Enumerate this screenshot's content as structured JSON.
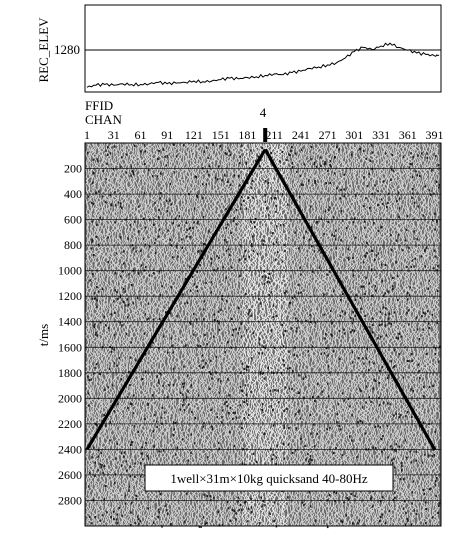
{
  "chart_data": [
    {
      "type": "line",
      "panel": "elevation",
      "ylabel": "REC_ELEV",
      "yticks": [
        1280
      ],
      "x": [
        1,
        11,
        21,
        31,
        41,
        51,
        61,
        71,
        81,
        91,
        101,
        111,
        121,
        131,
        141,
        151,
        161,
        171,
        181,
        191,
        201,
        211,
        221,
        231,
        241,
        251,
        261,
        271,
        281,
        291,
        301,
        311,
        321,
        331,
        341,
        351,
        361,
        371,
        381,
        391,
        396
      ],
      "values": [
        1,
        4,
        5,
        4,
        6,
        5,
        5,
        6,
        8,
        6,
        7,
        8,
        10,
        9,
        10,
        12,
        14,
        13,
        15,
        16,
        18,
        20,
        19,
        22,
        24,
        28,
        30,
        33,
        36,
        43,
        52,
        58,
        55,
        60,
        64,
        58,
        54,
        50,
        48,
        46,
        47
      ]
    },
    {
      "type": "heatmap",
      "panel": "seismic-record",
      "header_labels": [
        "FFID",
        "CHAN"
      ],
      "ffid": "4",
      "xticks": [
        "1",
        "31",
        "61",
        "91",
        "121",
        "151",
        "181",
        "211",
        "241",
        "271",
        "301",
        "331",
        "361",
        "391"
      ],
      "ylabel": "t/ms",
      "yticks": [
        "200",
        "400",
        "600",
        "800",
        "1000",
        "1200",
        "1400",
        "1600",
        "1800",
        "2000",
        "2200",
        "2400",
        "2600",
        "2800"
      ],
      "ylim": [
        0,
        3000
      ],
      "shot_channel": 201,
      "first_break": {
        "channel": [
          1,
          201,
          391
        ],
        "time_ms": [
          2400,
          50,
          2400
        ]
      },
      "annotation": "1well×31m×10kg  quicksand  40-80Hz"
    }
  ]
}
